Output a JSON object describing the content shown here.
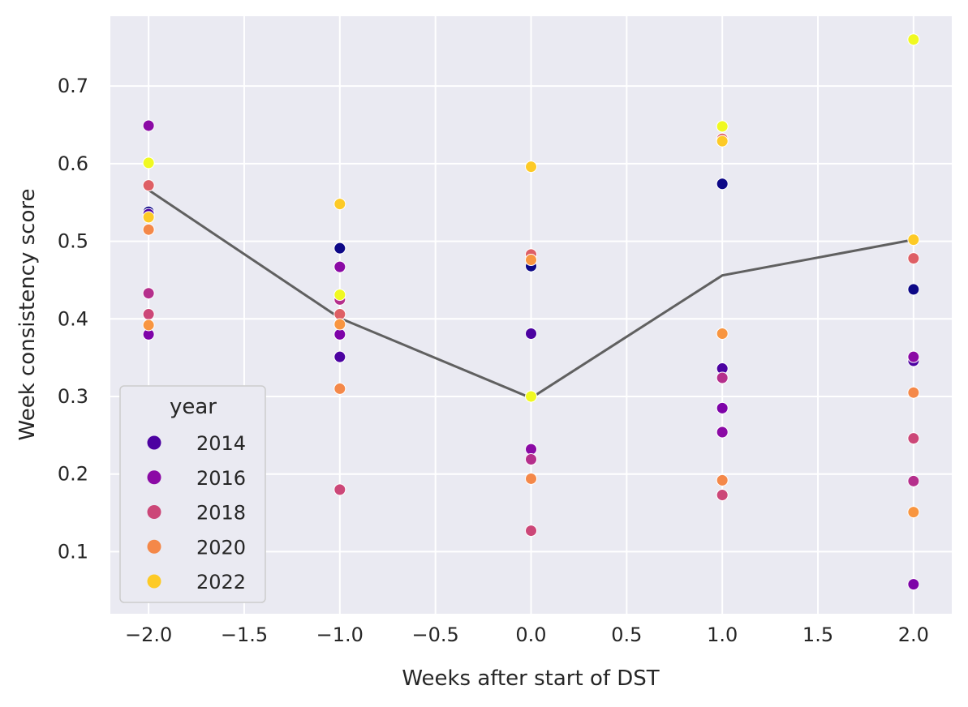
{
  "chart_data": {
    "type": "scatter",
    "title": "",
    "xlabel": "Weeks after start of DST",
    "ylabel": "Week consistency score",
    "xlim": [
      -2.2,
      2.2
    ],
    "ylim": [
      0.02,
      0.79
    ],
    "x_ticks": [
      -2.0,
      -1.5,
      -1.0,
      -0.5,
      0.0,
      0.5,
      1.0,
      1.5,
      2.0
    ],
    "x_tick_labels": [
      "−2.0",
      "−1.5",
      "−1.0",
      "−0.5",
      "0.0",
      "0.5",
      "1.0",
      "1.5",
      "2.0"
    ],
    "y_ticks": [
      0.1,
      0.2,
      0.3,
      0.4,
      0.5,
      0.6,
      0.7
    ],
    "y_tick_labels": [
      "0.1",
      "0.2",
      "0.3",
      "0.4",
      "0.5",
      "0.6",
      "0.7"
    ],
    "grid": true,
    "background": "#eaeaf2",
    "legend": {
      "title": "year",
      "placement": "lower-left",
      "entries": [
        {
          "label": "2014",
          "color": "#4c02a1"
        },
        {
          "label": "2016",
          "color": "#8b0aa5"
        },
        {
          "label": "2018",
          "color": "#cc4778"
        },
        {
          "label": "2020",
          "color": "#f48849"
        },
        {
          "label": "2022",
          "color": "#fdca26"
        }
      ]
    },
    "points": [
      {
        "x": -2,
        "y": 0.538,
        "color": "#0d0887"
      },
      {
        "x": -2,
        "y": 0.535,
        "color": "#4c02a1"
      },
      {
        "x": -2,
        "y": 0.649,
        "color": "#8b0aa5"
      },
      {
        "x": -2,
        "y": 0.38,
        "color": "#7e03a8"
      },
      {
        "x": -2,
        "y": 0.433,
        "color": "#b52f8c"
      },
      {
        "x": -2,
        "y": 0.406,
        "color": "#cc4778"
      },
      {
        "x": -2,
        "y": 0.572,
        "color": "#de5f65"
      },
      {
        "x": -2,
        "y": 0.515,
        "color": "#f48849"
      },
      {
        "x": -2,
        "y": 0.392,
        "color": "#f89540"
      },
      {
        "x": -2,
        "y": 0.531,
        "color": "#fdca26"
      },
      {
        "x": -2,
        "y": 0.601,
        "color": "#f0f921"
      },
      {
        "x": -1,
        "y": 0.491,
        "color": "#0d0887"
      },
      {
        "x": -1,
        "y": 0.351,
        "color": "#4c02a1"
      },
      {
        "x": -1,
        "y": 0.467,
        "color": "#8b0aa5"
      },
      {
        "x": -1,
        "y": 0.38,
        "color": "#7e03a8"
      },
      {
        "x": -1,
        "y": 0.425,
        "color": "#b52f8c"
      },
      {
        "x": -1,
        "y": 0.18,
        "color": "#cc4778"
      },
      {
        "x": -1,
        "y": 0.406,
        "color": "#de5f65"
      },
      {
        "x": -1,
        "y": 0.31,
        "color": "#f48849"
      },
      {
        "x": -1,
        "y": 0.393,
        "color": "#f89540"
      },
      {
        "x": -1,
        "y": 0.548,
        "color": "#fdca26"
      },
      {
        "x": -1,
        "y": 0.431,
        "color": "#f0f921"
      },
      {
        "x": 0,
        "y": 0.468,
        "color": "#0d0887"
      },
      {
        "x": 0,
        "y": 0.381,
        "color": "#4c02a1"
      },
      {
        "x": 0,
        "y": 0.232,
        "color": "#8b0aa5"
      },
      {
        "x": 0,
        "y": 0.219,
        "color": "#b52f8c"
      },
      {
        "x": 0,
        "y": 0.127,
        "color": "#cc4778"
      },
      {
        "x": 0,
        "y": 0.483,
        "color": "#de5f65"
      },
      {
        "x": 0,
        "y": 0.194,
        "color": "#f48849"
      },
      {
        "x": 0,
        "y": 0.476,
        "color": "#f89540"
      },
      {
        "x": 0,
        "y": 0.596,
        "color": "#fdca26"
      },
      {
        "x": 0,
        "y": 0.3,
        "color": "#f0f921"
      },
      {
        "x": 1,
        "y": 0.574,
        "color": "#0d0887"
      },
      {
        "x": 1,
        "y": 0.336,
        "color": "#4c02a1"
      },
      {
        "x": 1,
        "y": 0.285,
        "color": "#7e03a8"
      },
      {
        "x": 1,
        "y": 0.254,
        "color": "#8b0aa5"
      },
      {
        "x": 1,
        "y": 0.324,
        "color": "#b52f8c"
      },
      {
        "x": 1,
        "y": 0.173,
        "color": "#cc4778"
      },
      {
        "x": 1,
        "y": 0.632,
        "color": "#de5f65"
      },
      {
        "x": 1,
        "y": 0.192,
        "color": "#f48849"
      },
      {
        "x": 1,
        "y": 0.381,
        "color": "#f89540"
      },
      {
        "x": 1,
        "y": 0.629,
        "color": "#fdca26"
      },
      {
        "x": 1,
        "y": 0.648,
        "color": "#f0f921"
      },
      {
        "x": 2,
        "y": 0.438,
        "color": "#0d0887"
      },
      {
        "x": 2,
        "y": 0.346,
        "color": "#4c02a1"
      },
      {
        "x": 2,
        "y": 0.058,
        "color": "#7e03a8"
      },
      {
        "x": 2,
        "y": 0.351,
        "color": "#8b0aa5"
      },
      {
        "x": 2,
        "y": 0.191,
        "color": "#b52f8c"
      },
      {
        "x": 2,
        "y": 0.246,
        "color": "#cc4778"
      },
      {
        "x": 2,
        "y": 0.478,
        "color": "#de5f65"
      },
      {
        "x": 2,
        "y": 0.305,
        "color": "#f48849"
      },
      {
        "x": 2,
        "y": 0.151,
        "color": "#f89540"
      },
      {
        "x": 2,
        "y": 0.502,
        "color": "#fdca26"
      },
      {
        "x": 2,
        "y": 0.76,
        "color": "#f0f921"
      }
    ],
    "mean_line": {
      "color": "#606060",
      "x": [
        -2,
        -1,
        0,
        1,
        2
      ],
      "y": [
        0.566,
        0.401,
        0.298,
        0.456,
        0.502
      ]
    }
  }
}
